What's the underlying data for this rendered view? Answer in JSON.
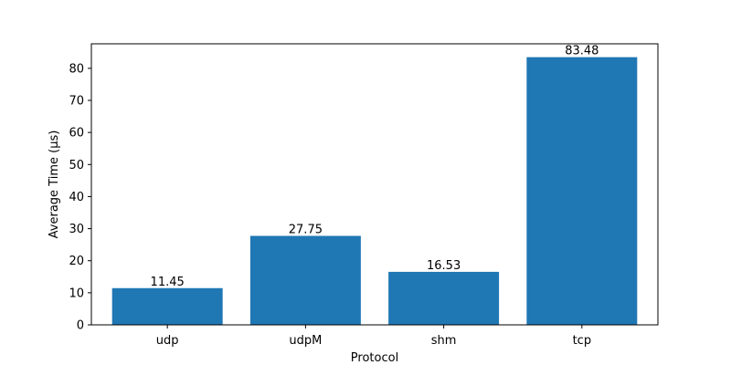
{
  "chart_data": {
    "type": "bar",
    "categories": [
      "udp",
      "udpM",
      "shm",
      "tcp"
    ],
    "values": [
      11.45,
      27.75,
      16.53,
      83.48
    ],
    "data_labels": [
      "11.45",
      "27.75",
      "16.53",
      "83.48"
    ],
    "title": "",
    "xlabel": "Protocol",
    "ylabel": "Average Time (µs)",
    "ylim": [
      0,
      87.65
    ],
    "yticks": [
      0,
      10,
      20,
      30,
      40,
      50,
      60,
      70,
      80
    ],
    "grid": false,
    "bar_color": "#1f77b4"
  }
}
